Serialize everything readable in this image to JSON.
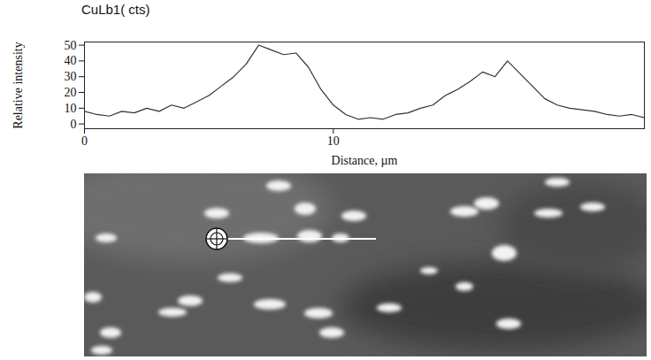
{
  "chart_data": {
    "type": "line",
    "title": "CuLb1( cts)",
    "x_label": "Distance, µm",
    "y_label": "Relative intensity",
    "x": [
      0,
      0.5,
      1,
      1.5,
      2,
      2.5,
      3,
      3.5,
      4,
      4.5,
      5,
      5.5,
      6,
      6.5,
      7,
      7.5,
      8,
      8.5,
      9,
      9.5,
      10,
      10.5,
      11,
      11.5,
      12,
      12.5,
      13,
      13.5,
      14,
      14.5,
      15,
      15.5,
      16,
      16.5,
      17,
      17.5,
      18,
      18.5,
      19,
      19.5,
      20,
      20.5,
      21,
      21.5,
      22,
      22.5
    ],
    "values": [
      8,
      6,
      5,
      8,
      7,
      10,
      8,
      12,
      10,
      14,
      18,
      24,
      30,
      38,
      50,
      47,
      44,
      45,
      36,
      22,
      12,
      6,
      3,
      4,
      3,
      6,
      7,
      10,
      12,
      18,
      22,
      27,
      33,
      30,
      40,
      32,
      24,
      16,
      12,
      10,
      9,
      8,
      6,
      5,
      6,
      4
    ],
    "color": "#333333",
    "xlim": [
      0,
      22.5
    ],
    "ylim": [
      -3,
      52
    ],
    "xticks": [
      0,
      10
    ],
    "yticks": [
      0,
      10,
      20,
      30,
      40,
      50
    ],
    "grid": false
  }
}
